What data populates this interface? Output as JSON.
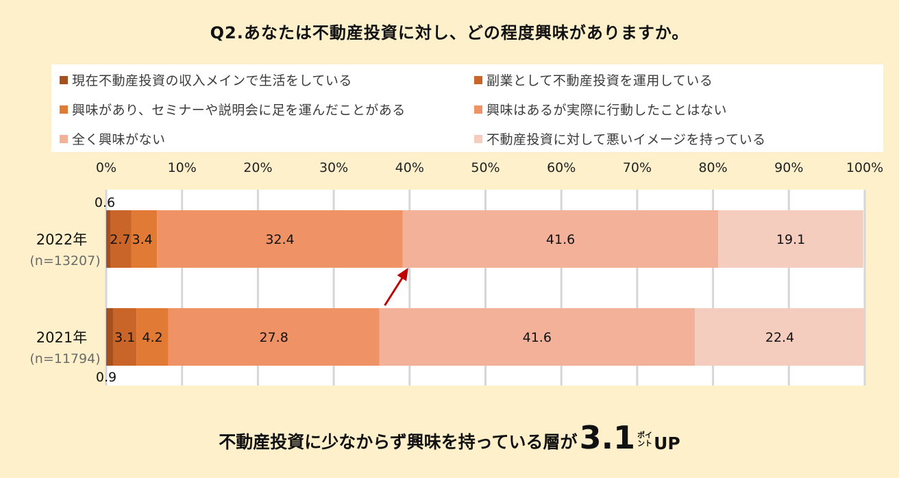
{
  "title": "Q2.あなたは不動産投資に対し、どの程度興味がありますか。",
  "legend": [
    {
      "label": "現在不動産投資の収入メインで生活をしている",
      "color": "#a5501e"
    },
    {
      "label": "副業として不動産投資を運用している",
      "color": "#c96528"
    },
    {
      "label": "興味があり、セミナーや説明会に足を運んだことがある",
      "color": "#e17a34"
    },
    {
      "label": "興味はあるが実際に行動したことはない",
      "color": "#ef9266"
    },
    {
      "label": "全く興味がない",
      "color": "#f3b19a"
    },
    {
      "label": "不動産投資に対して悪いイメージを持っている",
      "color": "#f5cdbf"
    }
  ],
  "chart_data": {
    "type": "bar",
    "orientation": "horizontal-stacked-100",
    "xlim": [
      0,
      100
    ],
    "x_ticks": [
      "0%",
      "10%",
      "20%",
      "30%",
      "40%",
      "50%",
      "60%",
      "70%",
      "80%",
      "90%",
      "100%"
    ],
    "categories": [
      {
        "year": "2022年",
        "n": "(n=13207)"
      },
      {
        "year": "2021年",
        "n": "(n=11794)"
      }
    ],
    "series": [
      {
        "name": "現在不動産投資の収入メインで生活をしている",
        "values": [
          0.6,
          0.9
        ],
        "labels": [
          "0.6",
          "0.9"
        ]
      },
      {
        "name": "副業として不動産投資を運用している",
        "values": [
          2.7,
          3.1
        ],
        "labels": [
          "2.7",
          "3.1"
        ]
      },
      {
        "name": "興味があり、セミナーや説明会に足を運んだことがある",
        "values": [
          3.4,
          4.2
        ],
        "labels": [
          "3.4",
          "4.2"
        ]
      },
      {
        "name": "興味はあるが実際に行動したことはない",
        "values": [
          32.4,
          27.8
        ],
        "labels": [
          "32.4",
          "27.8"
        ]
      },
      {
        "name": "全く興味がない",
        "values": [
          41.6,
          41.6
        ],
        "labels": [
          "41.6",
          "41.6"
        ]
      },
      {
        "name": "不動産投資に対して悪いイメージを持っている",
        "values": [
          19.1,
          22.4
        ],
        "labels": [
          "19.1",
          "22.4"
        ]
      }
    ],
    "grid": true,
    "arrow": {
      "from_category": 1,
      "to_category": 0,
      "color": "#c00000"
    }
  },
  "note": {
    "text": "不動産投資に少なからず興味を持っている層が",
    "value": "3.1",
    "unit_top": "ポイ",
    "unit_bottom": "ント",
    "suffix": "UP"
  }
}
